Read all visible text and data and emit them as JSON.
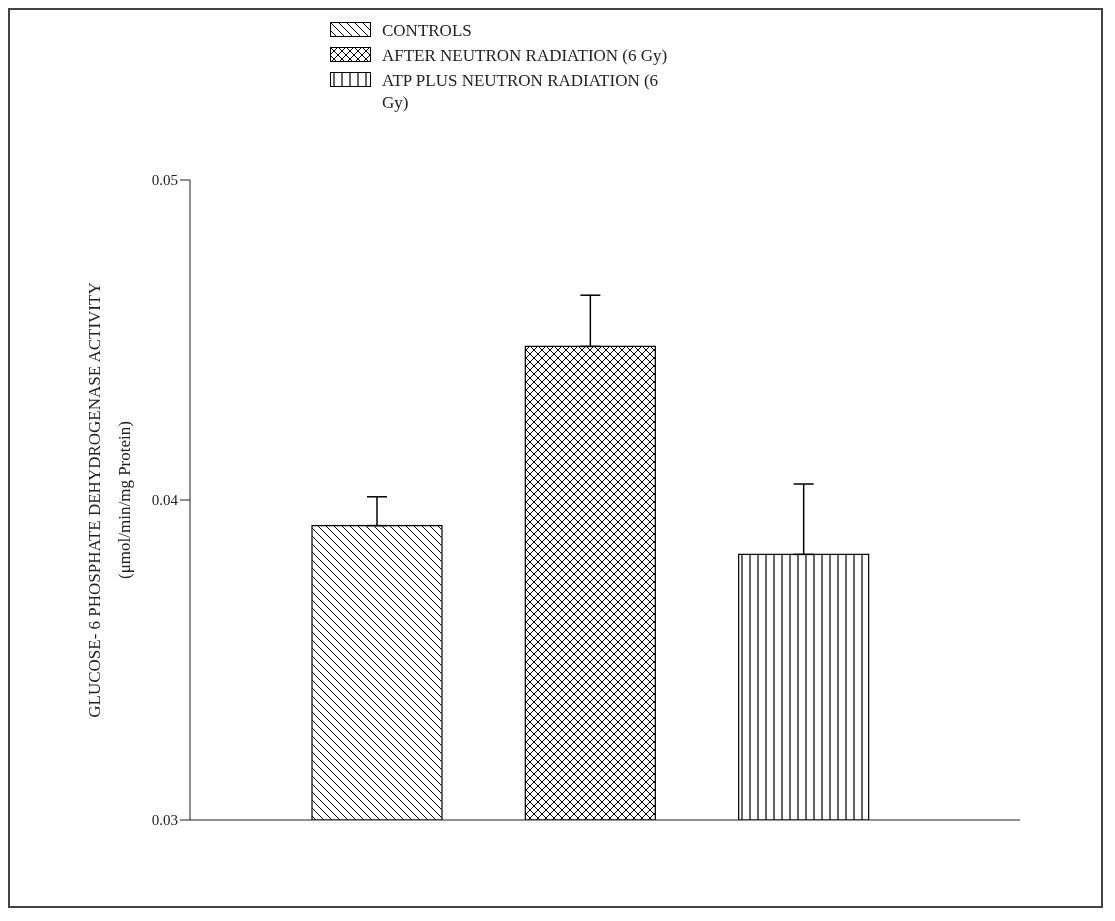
{
  "chart_data": {
    "type": "bar",
    "ylabel": "GLUCOSE- 6 PHOSPHATE DEHYDROGENASE ACTIVITY\n(μmol/min/mg Protein)",
    "categories": [
      null,
      null,
      null
    ],
    "stacked": true,
    "series": [
      {
        "name": "CONTROLS",
        "color": "#000000",
        "values": [
          0.0392,
          null,
          null
        ],
        "errors": [
          [
            0.0392,
            0.0401
          ],
          null,
          null
        ]
      },
      {
        "name": "AFTER NEUTRON RADIATION (6 Gy)",
        "color": "#000000",
        "values": [
          null,
          0.0448,
          null
        ],
        "errors": [
          null,
          [
            0.0448,
            0.0464
          ],
          null
        ]
      },
      {
        "name": "ATP PLUS NEUTRON RADIATION (6 Gy)",
        "color": "#000000",
        "values": [
          null,
          null,
          0.0383
        ],
        "errors": [
          null,
          null,
          [
            0.0383,
            0.0405
          ]
        ]
      }
    ],
    "ylim": [
      0.03,
      0.05
    ],
    "yticks": [
      0.03,
      0.04,
      0.05
    ],
    "grid": false,
    "legend": "top"
  }
}
